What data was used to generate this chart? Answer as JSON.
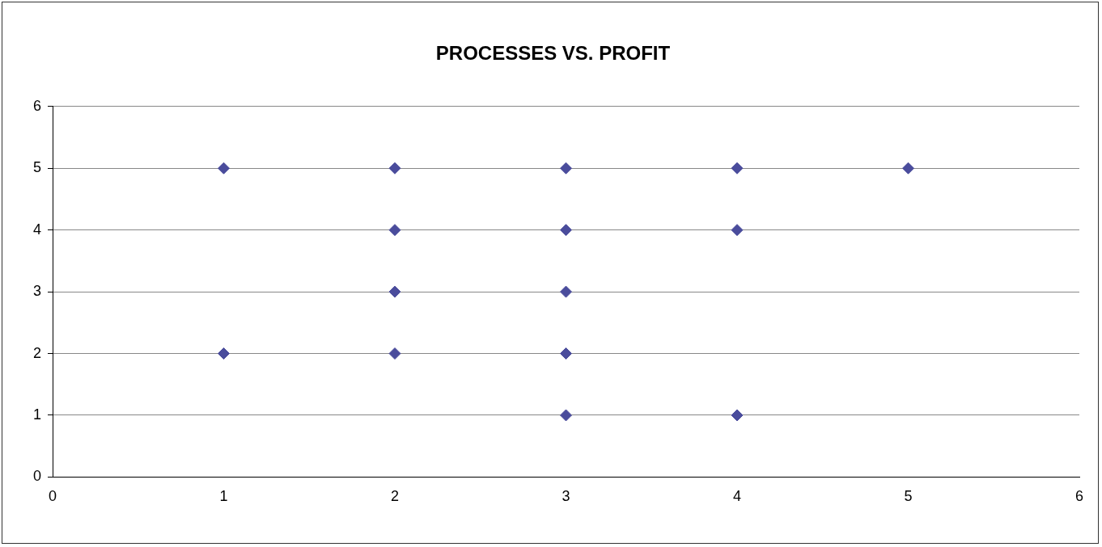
{
  "chart_data": {
    "type": "scatter",
    "title": "PROCESSES VS. PROFIT",
    "x": [
      1,
      2,
      3,
      4,
      5,
      2,
      3,
      4,
      2,
      3,
      1,
      2,
      3,
      3,
      4
    ],
    "values": [
      5,
      5,
      5,
      5,
      5,
      4,
      4,
      4,
      3,
      3,
      2,
      2,
      2,
      1,
      1
    ],
    "color": "#4a4c9c",
    "xlim": [
      0,
      6
    ],
    "xticks": [
      0,
      1,
      2,
      3,
      4,
      5,
      6
    ],
    "ylim": [
      0,
      6
    ],
    "yticks": [
      0,
      1,
      2,
      3,
      4,
      5,
      6
    ],
    "grid": "y",
    "marker": "diamond",
    "legend": false
  }
}
